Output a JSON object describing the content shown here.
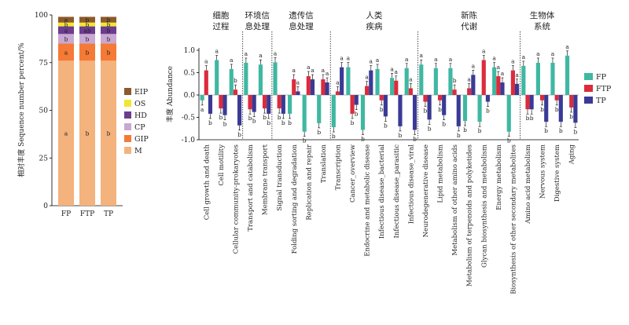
{
  "chart_data": [
    {
      "type": "bar",
      "stacked": true,
      "ylabel": "相对丰度 Sequence number percent/%",
      "ylim": [
        0,
        100
      ],
      "yticks": [
        0,
        25,
        50,
        75,
        100
      ],
      "categories": [
        "FP",
        "FTP",
        "TP"
      ],
      "series": [
        {
          "name": "M",
          "color": "#f4b27c",
          "values": [
            76,
            76,
            76
          ],
          "letters": [
            "a",
            "b",
            "b"
          ]
        },
        {
          "name": "GIP",
          "color": "#f47a36",
          "values": [
            9,
            9,
            9
          ],
          "letters": [
            "a",
            "b",
            "b"
          ]
        },
        {
          "name": "CP",
          "color": "#c9a8d3",
          "values": [
            5,
            5,
            5
          ],
          "letters": [
            "b",
            "b",
            "b"
          ]
        },
        {
          "name": "HD",
          "color": "#6c3c8f",
          "values": [
            4,
            4,
            4
          ],
          "letters": [
            "a",
            "ab",
            "b"
          ]
        },
        {
          "name": "OS",
          "color": "#f3e632",
          "values": [
            2,
            2,
            2
          ],
          "letters": [
            "b",
            "b",
            "b"
          ]
        },
        {
          "name": "EIP",
          "color": "#8c5a2b",
          "values": [
            3,
            3,
            3
          ],
          "letters": [
            "a",
            "b",
            "b"
          ]
        }
      ],
      "legend": [
        "EIP",
        "OS",
        "HD",
        "CP",
        "GIP",
        "M"
      ]
    },
    {
      "type": "bar",
      "ylabel": "丰度 Abundance",
      "ylim": [
        -1.0,
        1.0
      ],
      "yticks": [
        -1.0,
        -0.5,
        0,
        0.5,
        1.0
      ],
      "groups": [
        {
          "name": "细胞\n过程",
          "count": 3
        },
        {
          "name": "环境信\n息处理",
          "count": 2
        },
        {
          "name": "遗传信\n息处理",
          "count": 4
        },
        {
          "name": "人类\n疾病",
          "count": 6
        },
        {
          "name": "新陈\n代谢",
          "count": 7
        },
        {
          "name": "生物体\n系统",
          "count": 3
        }
      ],
      "categories": [
        "Cell growth and death",
        "Cell motility",
        "Cellular community-prokaryotes",
        "Transport and catabolism",
        "Membrane transport",
        "Signal transduction",
        "Folding sorting and degradation",
        "Replication and repair",
        "Translation",
        "Transcription",
        "Cancer_overview",
        "Endocrine and metabolic disease",
        "Infectious disease_bacterial",
        "Infectious disease_parasitic",
        "Infectious disease_viral",
        "Neurodegenerative disease",
        "Lipid metabolism",
        "Metabolism of other amino acids",
        "Metabolism of terpenoids and polyketides",
        "Glycan biosynthesis and metabolism",
        "Energy metabolism",
        "Biosynthesis of other secondary metabolites",
        "Amino acid metabolism",
        "Nervous system",
        "Digestive system",
        "Aging"
      ],
      "series": [
        {
          "name": "FP",
          "color": "#3fb8a2",
          "values": [
            -0.12,
            0.78,
            0.58,
            0.72,
            0.68,
            0.73,
            -0.42,
            -0.82,
            -0.63,
            -0.72,
            0.62,
            -0.78,
            0.58,
            0.38,
            0.6,
            0.68,
            0.6,
            0.6,
            -0.58,
            -0.6,
            0.62,
            -0.82,
            0.65,
            0.72,
            0.72,
            0.88
          ],
          "letters": [
            "a",
            "a",
            "a",
            "a",
            "a",
            "a",
            "b",
            "b",
            "b",
            "b",
            "a",
            "b",
            "a",
            "a",
            "a",
            "a",
            "a",
            "a",
            "b",
            "b",
            "a",
            "b",
            "a",
            "a",
            "a",
            "a"
          ]
        },
        {
          "name": "FTP",
          "color": "#dc2b3c",
          "values": [
            0.55,
            -0.3,
            0.12,
            -0.32,
            -0.3,
            -0.3,
            0.35,
            0.42,
            0.35,
            0.08,
            -0.42,
            0.2,
            -0.12,
            0.32,
            0.15,
            -0.15,
            -0.12,
            0.12,
            0.15,
            0.78,
            0.42,
            0.55,
            -0.32,
            -0.12,
            -0.12,
            -0.28
          ],
          "letters": [
            "a",
            "b",
            "b",
            "b",
            "b",
            "b",
            "a",
            "a",
            "a",
            "a",
            "b",
            "a",
            "b",
            "a",
            "a",
            "b",
            "b",
            "b",
            "a",
            "a",
            "a",
            "a",
            "b",
            "b",
            "b",
            "b"
          ]
        },
        {
          "name": "TP",
          "color": "#3a3a96",
          "values": [
            -0.42,
            -0.45,
            -0.68,
            -0.38,
            -0.42,
            -0.42,
            0.08,
            0.35,
            0.28,
            0.62,
            -0.22,
            0.55,
            -0.48,
            -0.7,
            -0.78,
            -0.55,
            -0.45,
            -0.7,
            0.45,
            -0.15,
            0.28,
            0.25,
            -0.32,
            -0.6,
            -0.6,
            -0.62
          ],
          "letters": [
            "b",
            "b",
            "b",
            "b",
            "b",
            "b",
            "a",
            "a",
            "a",
            "a",
            "b",
            "a",
            "b",
            "b",
            "b",
            "b",
            "b",
            "b",
            "a",
            "b",
            "a",
            "a",
            "b",
            "b",
            "b",
            "b"
          ]
        }
      ],
      "legend": [
        "FP",
        "FTP",
        "TP"
      ]
    }
  ]
}
